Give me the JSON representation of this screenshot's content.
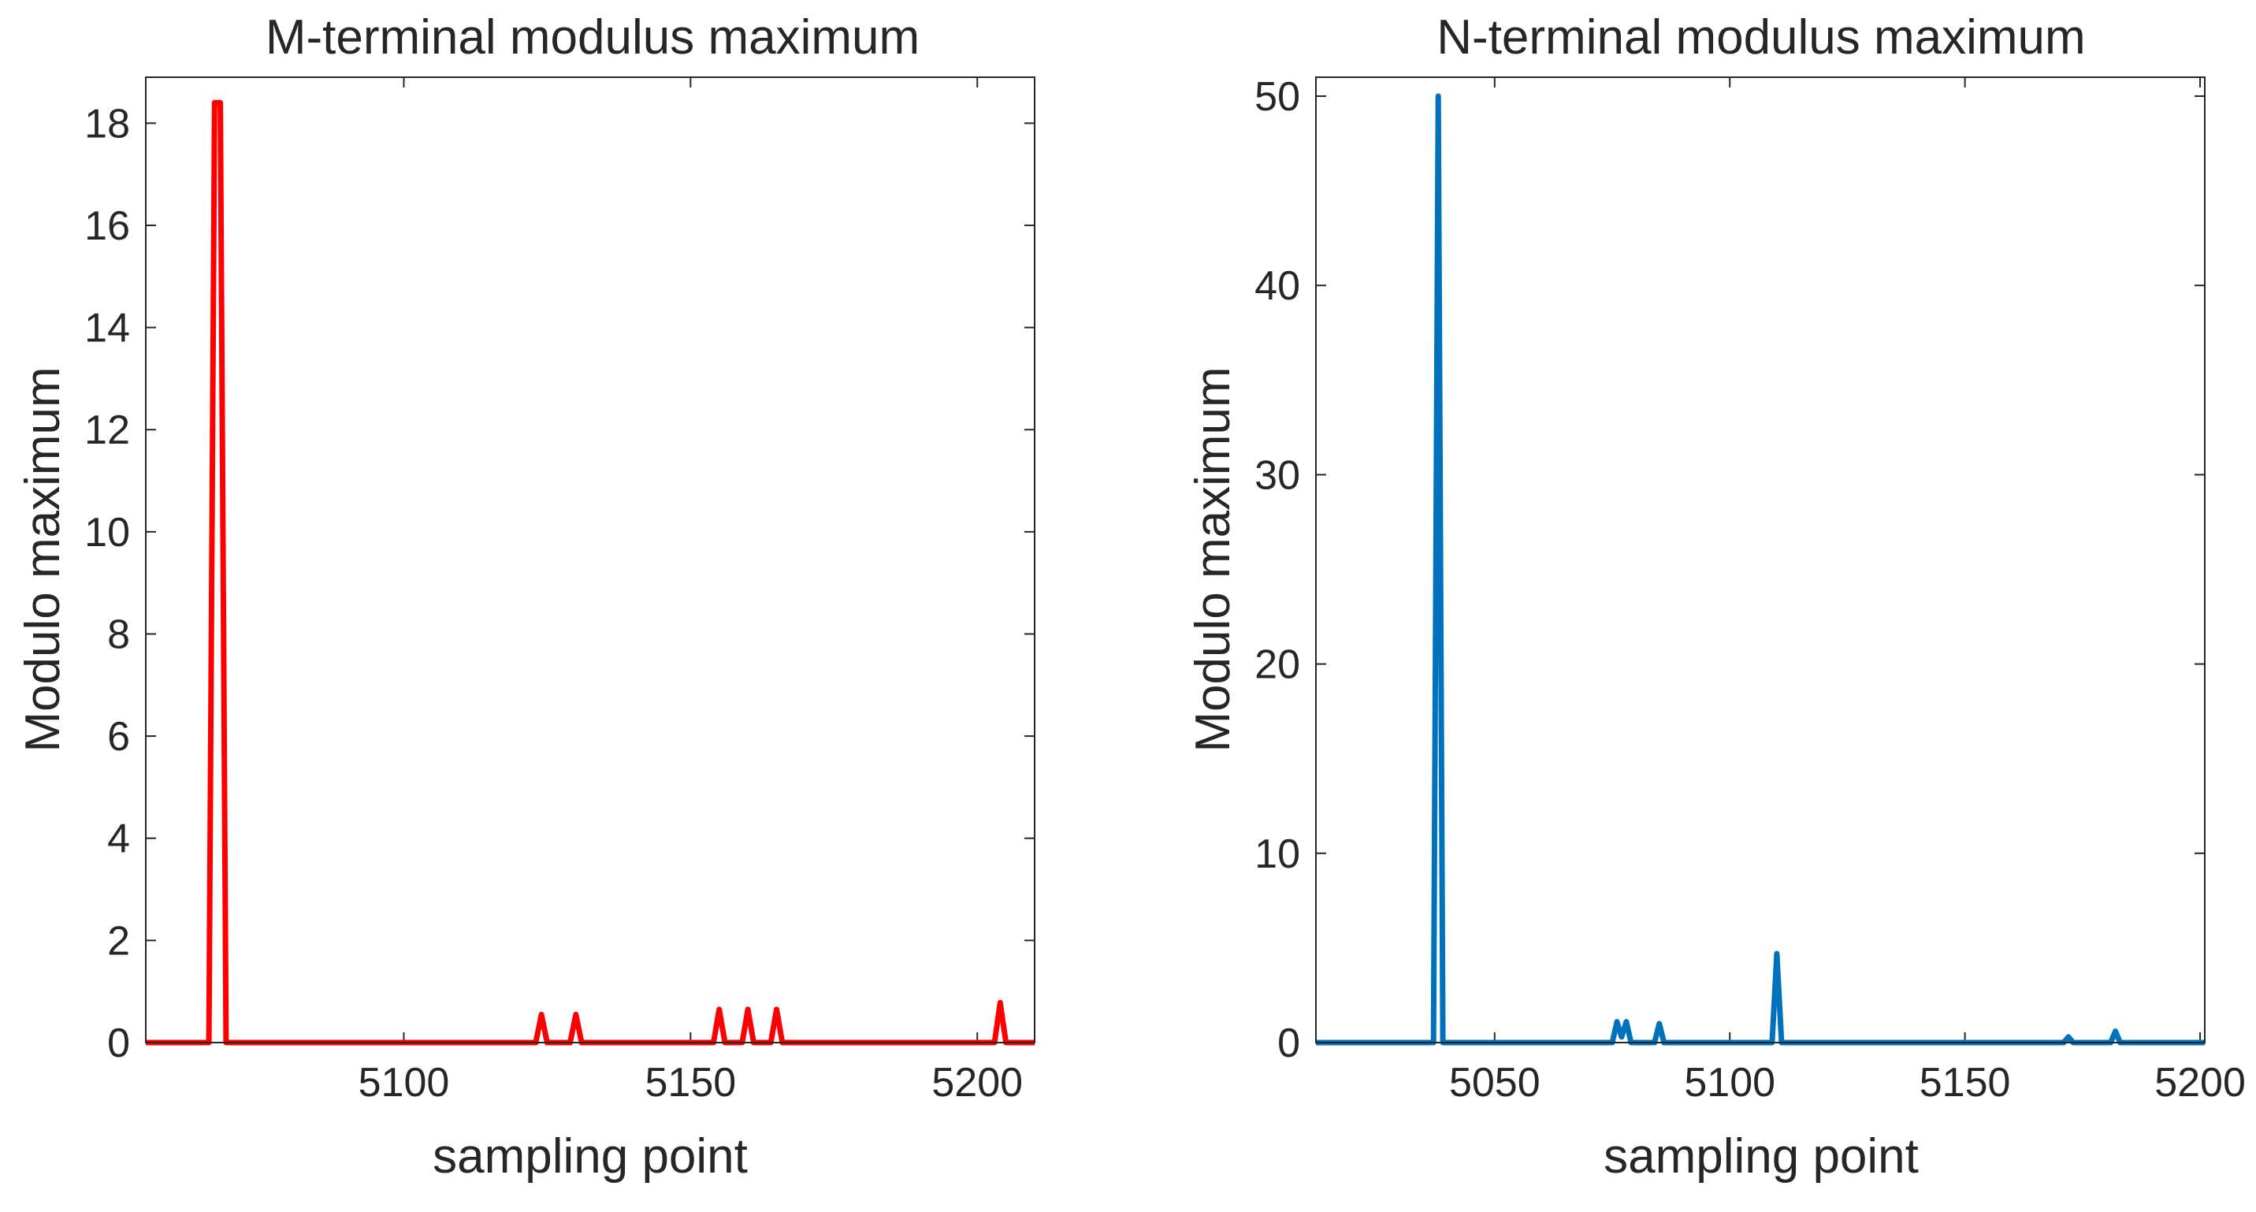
{
  "chart_data": [
    {
      "type": "line",
      "title": "M-terminal modulus maximum",
      "xlabel": "sampling point",
      "ylabel": "Modulo maximum",
      "xlim": [
        5055,
        5210
      ],
      "ylim": [
        0,
        18.9
      ],
      "xticks": [
        5100,
        5150,
        5200
      ],
      "yticks": [
        0,
        2,
        4,
        6,
        8,
        10,
        12,
        14,
        16,
        18
      ],
      "color": "#ff0000",
      "series": [
        {
          "name": "M-terminal",
          "x": [
            5055,
            5066,
            5067,
            5068,
            5069,
            5123,
            5124,
            5125,
            5129,
            5130,
            5131,
            5154,
            5155,
            5156,
            5159,
            5160,
            5161,
            5164,
            5165,
            5166,
            5203,
            5204,
            5205,
            5210
          ],
          "y": [
            0,
            0,
            18.4,
            18.4,
            0,
            0,
            0.55,
            0,
            0,
            0.55,
            0,
            0,
            0.65,
            0,
            0,
            0.65,
            0,
            0,
            0.65,
            0,
            0,
            0.78,
            0,
            0
          ]
        }
      ]
    },
    {
      "type": "line",
      "title": "N-terminal modulus maximum",
      "xlabel": "sampling point",
      "ylabel": "Modulo maximum",
      "xlim": [
        5012,
        5201
      ],
      "ylim": [
        0,
        51
      ],
      "xticks": [
        5050,
        5100,
        5150,
        5200
      ],
      "yticks": [
        0,
        10,
        20,
        30,
        40,
        50
      ],
      "color": "#0072bd",
      "series": [
        {
          "name": "N-terminal",
          "x": [
            5012,
            5037,
            5038,
            5039,
            5075,
            5076,
            5077,
            5078,
            5079,
            5084,
            5085,
            5086,
            5109,
            5110,
            5111,
            5171,
            5172,
            5173,
            5181,
            5182,
            5183,
            5201
          ],
          "y": [
            0,
            0,
            50,
            0,
            0,
            1.1,
            0.3,
            1.1,
            0,
            0,
            1.0,
            0,
            0,
            4.7,
            0,
            0,
            0.3,
            0,
            0,
            0.6,
            0,
            0
          ]
        }
      ]
    }
  ]
}
